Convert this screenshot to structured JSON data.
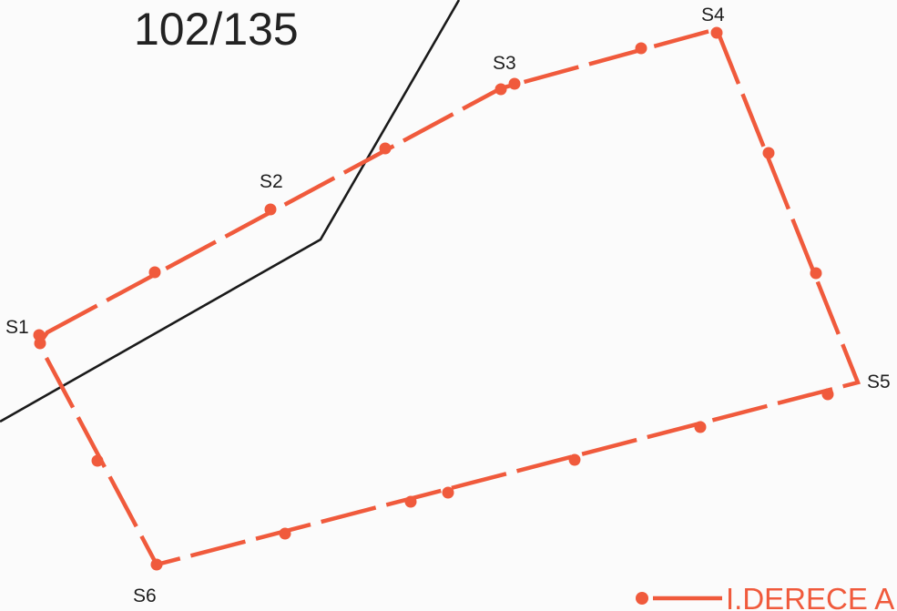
{
  "map": {
    "parcel_number": "102/135",
    "line_color": "#1a1a1a",
    "boundary_color": "#f05a3c",
    "vertices": [
      {
        "id": "s1",
        "label": "S1"
      },
      {
        "id": "s2",
        "label": "S2"
      },
      {
        "id": "s3",
        "label": "S3"
      },
      {
        "id": "s4",
        "label": "S4"
      },
      {
        "id": "s5",
        "label": "S5"
      },
      {
        "id": "s6",
        "label": "S6"
      }
    ]
  },
  "legend": {
    "label": "I.DERECE A",
    "symbol": "dot-dash-line"
  }
}
